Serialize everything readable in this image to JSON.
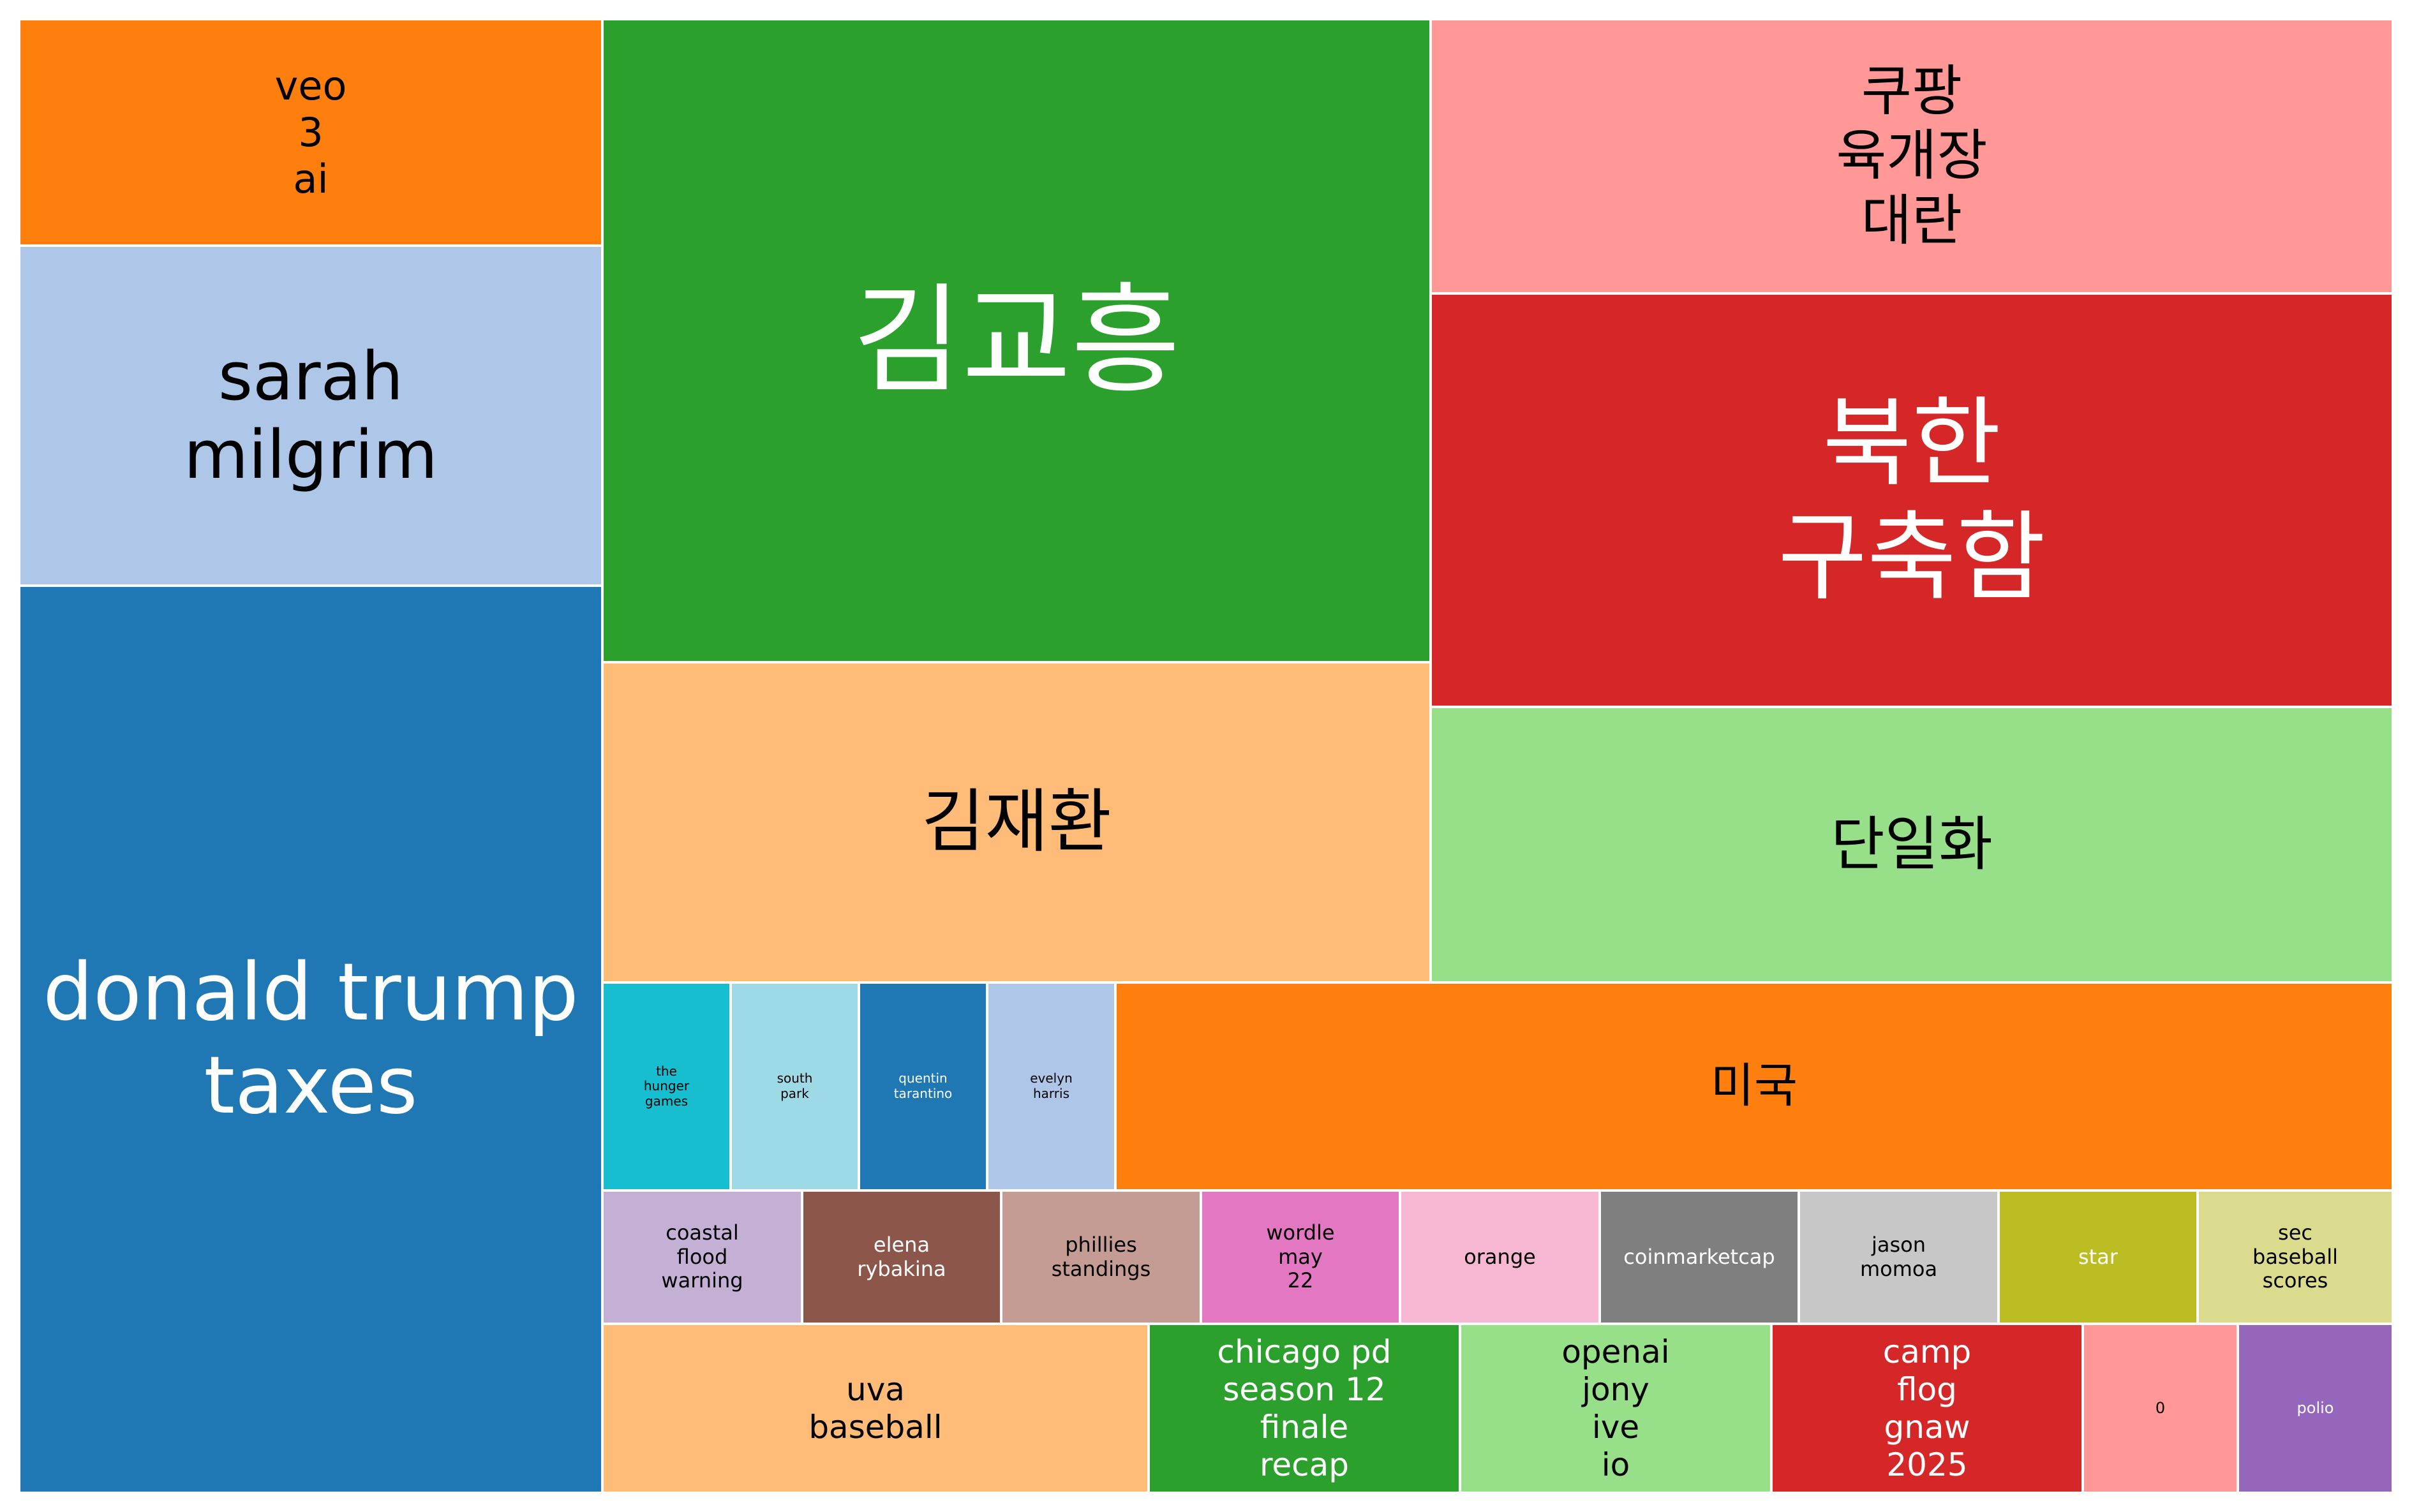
{
  "chart_data": {
    "type": "treemap",
    "title": "",
    "items": [
      {
        "label": "donald trump\ntaxes",
        "color": "#1f77b4",
        "text_color": "#ffffff",
        "font": 124
      },
      {
        "label": "sarah\nmilgrim",
        "color": "#aec7e8",
        "text_color": "#000000",
        "font": 104
      },
      {
        "label": "veo\n3\nai",
        "color": "#ff7f0e",
        "text_color": "#000000",
        "font": 62
      },
      {
        "label": "김교흥",
        "color": "#2ca02c",
        "text_color": "#ffffff",
        "font": 186
      },
      {
        "label": "김재환",
        "color": "#ffbb78",
        "text_color": "#000000",
        "font": 108
      },
      {
        "label": "쿠팡\n육개장\n대란",
        "color": "#ff9896",
        "text_color": "#000000",
        "font": 86
      },
      {
        "label": "북한\n구축함",
        "color": "#d62728",
        "text_color": "#ffffff",
        "font": 152
      },
      {
        "label": "단일화",
        "color": "#98df8a",
        "text_color": "#000000",
        "font": 92
      },
      {
        "label": "the\nhunger\ngames",
        "color": "#17becf",
        "text_color": "#000000",
        "font": 20
      },
      {
        "label": "south\npark",
        "color": "#9edae5",
        "text_color": "#000000",
        "font": 20
      },
      {
        "label": "quentin\ntarantino",
        "color": "#1f77b4",
        "text_color": "#ffffff",
        "font": 20
      },
      {
        "label": "evelyn\nharris",
        "color": "#aec7e8",
        "text_color": "#000000",
        "font": 20
      },
      {
        "label": "미국",
        "color": "#ff7f0e",
        "text_color": "#000000",
        "font": 74
      },
      {
        "label": "coastal\nflood\nwarning",
        "color": "#c5b0d5",
        "text_color": "#000000",
        "font": 32
      },
      {
        "label": "elena\nrybakina",
        "color": "#8c564b",
        "text_color": "#ffffff",
        "font": 32
      },
      {
        "label": "phillies\nstandings",
        "color": "#c49c94",
        "text_color": "#000000",
        "font": 32
      },
      {
        "label": "wordle\nmay\n22",
        "color": "#e377c2",
        "text_color": "#000000",
        "font": 32
      },
      {
        "label": "orange",
        "color": "#f7b6d2",
        "text_color": "#000000",
        "font": 32
      },
      {
        "label": "coinmarketcap",
        "color": "#7f7f7f",
        "text_color": "#ffffff",
        "font": 32
      },
      {
        "label": "jason\nmomoa",
        "color": "#c7c7c7",
        "text_color": "#000000",
        "font": 32
      },
      {
        "label": "star",
        "color": "#bcbd22",
        "text_color": "#ffffff",
        "font": 32
      },
      {
        "label": "sec\nbaseball\nscores",
        "color": "#dbdb8d",
        "text_color": "#000000",
        "font": 32
      },
      {
        "label": "uva\nbaseball",
        "color": "#ffbb78",
        "text_color": "#000000",
        "font": 50
      },
      {
        "label": "chicago pd\nseason 12\nfinale\nrecap",
        "color": "#2ca02c",
        "text_color": "#ffffff",
        "font": 50
      },
      {
        "label": "openai\njony\nive\nio",
        "color": "#98df8a",
        "text_color": "#000000",
        "font": 50
      },
      {
        "label": "camp\nflog\ngnaw\n2025",
        "color": "#d62728",
        "text_color": "#ffffff",
        "font": 50
      },
      {
        "label": "0",
        "color": "#ff9896",
        "text_color": "#000000",
        "font": 24
      },
      {
        "label": "polio",
        "color": "#9467bd",
        "text_color": "#ffffff",
        "font": 24
      }
    ]
  }
}
